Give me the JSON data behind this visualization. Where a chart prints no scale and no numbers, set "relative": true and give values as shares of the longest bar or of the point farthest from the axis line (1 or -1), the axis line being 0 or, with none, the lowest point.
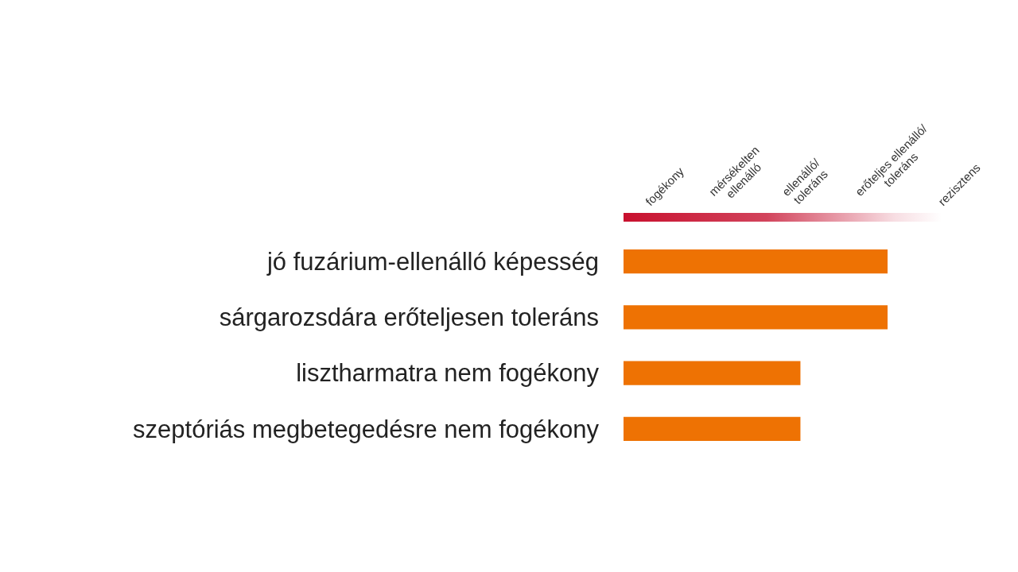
{
  "chart_data": {
    "type": "bar",
    "orientation": "horizontal",
    "relative": true,
    "categories": [
      "jó fuzárium-ellenálló képesség",
      "sárgarozsdára erőteljesen toleráns",
      "lisztharmatra nem fogékony",
      "szeptóriás megbetegedésre nem fogékony"
    ],
    "values": [
      1,
      1,
      0.67,
      0.67
    ],
    "color": "#ee7203",
    "annotations": [
      "fogékony",
      "mérsékelten\nellenálló",
      "ellenálló/\ntoleráns",
      "erőteljes ellenálló/\ntoleráns",
      "rezisztens"
    ],
    "legend": false
  }
}
